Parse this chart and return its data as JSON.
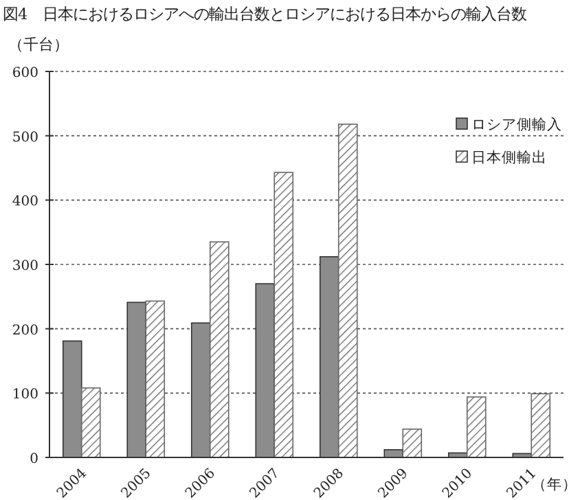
{
  "chart_data": {
    "type": "bar",
    "title": "図4　日本におけるロシアへの輸出台数とロシアにおける日本からの輸入台数",
    "ylabel": "（千台）",
    "xlabel": "（年）",
    "categories": [
      "2004",
      "2005",
      "2006",
      "2007",
      "2008",
      "2009",
      "2010",
      "2011"
    ],
    "series": [
      {
        "name": "ロシア側輸入",
        "color": "#8c8c8c",
        "values": [
          181,
          241,
          209,
          270,
          312,
          12,
          7,
          6
        ]
      },
      {
        "name": "日本側輸出",
        "color": "#666666",
        "values": [
          108,
          243,
          335,
          443,
          518,
          44,
          94,
          99
        ]
      }
    ],
    "ylim": [
      0,
      600
    ],
    "yticks": [
      0,
      100,
      200,
      300,
      400,
      500,
      600
    ],
    "grid": "y",
    "legend": "top right"
  }
}
